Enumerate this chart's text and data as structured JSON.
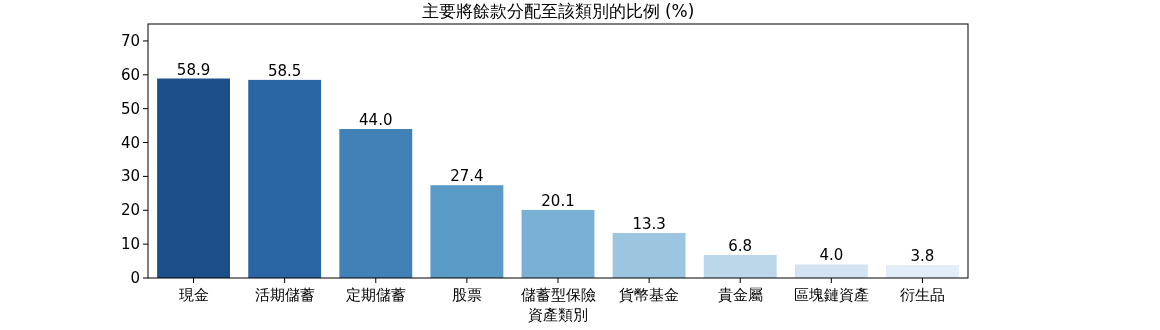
{
  "chart_data": {
    "type": "bar",
    "title": "主要將餘款分配至該類別的比例 (%)",
    "xlabel": "資產類別",
    "categories": [
      "現金",
      "活期儲蓄",
      "定期儲蓄",
      "股票",
      "儲蓄型保險",
      "貨幣基金",
      "貴金屬",
      "區塊鏈資產",
      "衍生品"
    ],
    "values": [
      58.9,
      58.5,
      44.0,
      27.4,
      20.1,
      13.3,
      6.8,
      4.0,
      3.8
    ],
    "colors": [
      "#1c4f8a",
      "#2a66a4",
      "#4281b8",
      "#5a9ac6",
      "#7bb0d5",
      "#9cc5e0",
      "#bcd6ea",
      "#d3e3f2",
      "#e3edf7"
    ],
    "value_labels": [
      "58.9",
      "58.5",
      "44.0",
      "27.4",
      "20.1",
      "13.3",
      "6.8",
      "4.0",
      "3.8"
    ],
    "ylim": [
      0,
      75
    ],
    "yticks": [
      0,
      10,
      20,
      30,
      40,
      50,
      60,
      70
    ],
    "grid": false
  }
}
